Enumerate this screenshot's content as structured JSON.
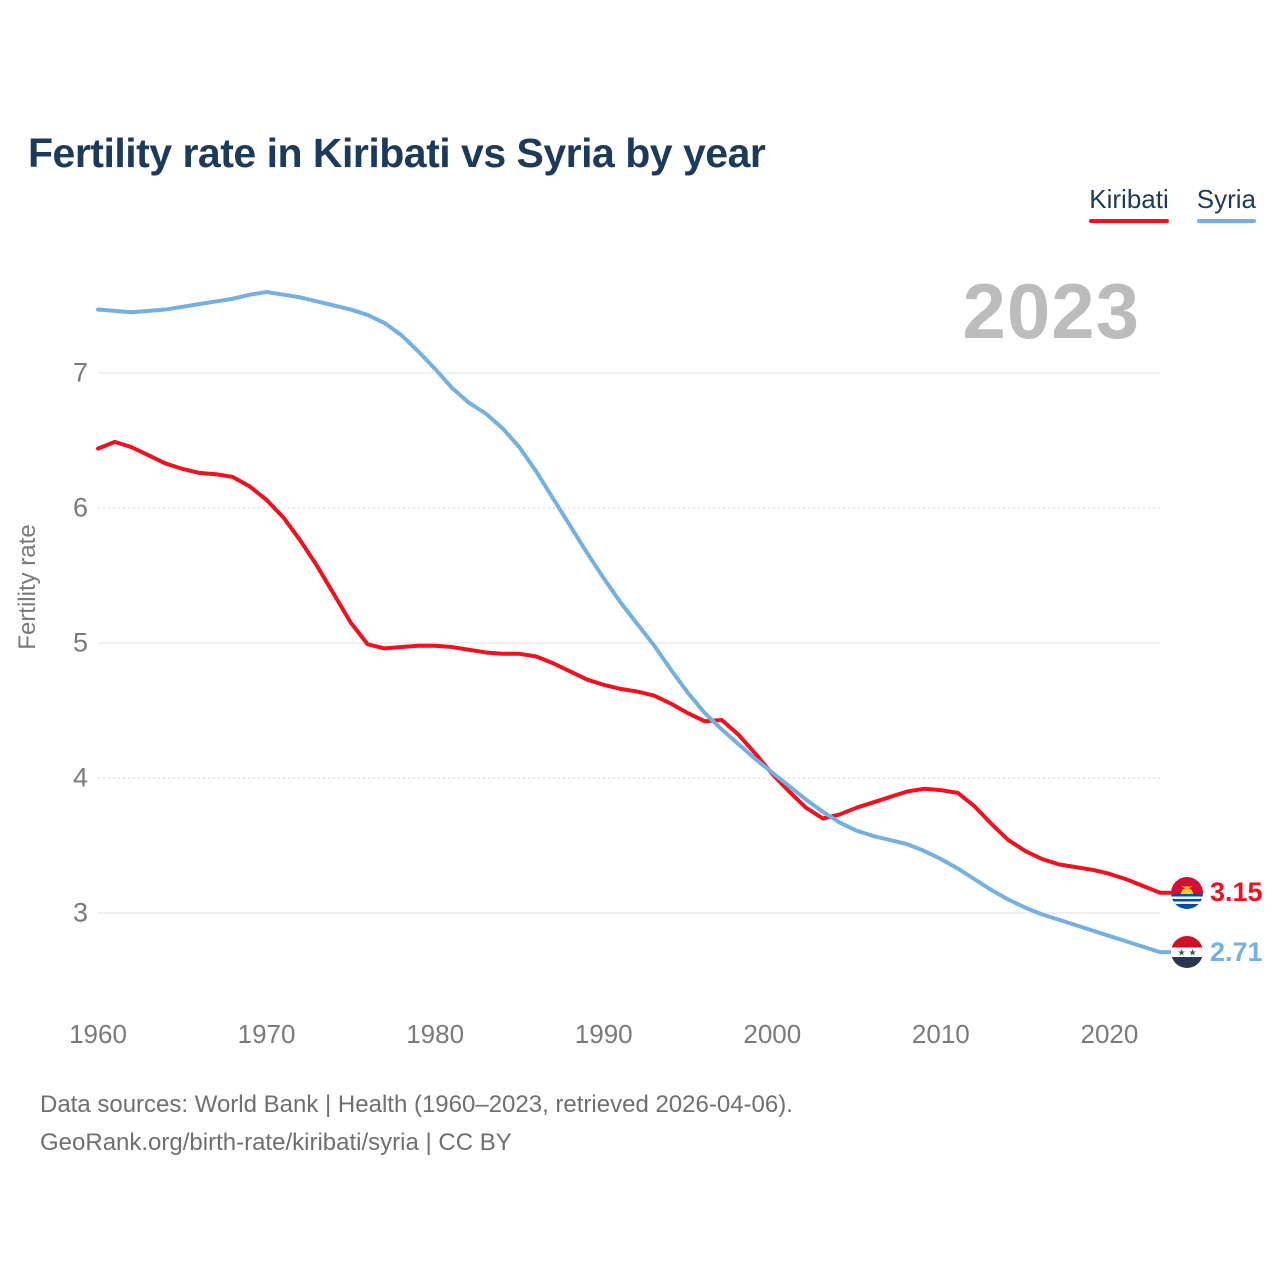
{
  "title": "Fertility rate in Kiribati vs Syria by year",
  "watermark": "2023",
  "legend": [
    {
      "label": "Kiribati",
      "color": "#f2101f"
    },
    {
      "label": "Syria",
      "color": "#74b0e2"
    }
  ],
  "y_axis": {
    "label": "Fertility rate",
    "ticks": [
      7,
      6,
      5,
      4,
      3
    ]
  },
  "x_axis": {
    "ticks": [
      1960,
      1970,
      1980,
      1990,
      2000,
      2010,
      2020
    ]
  },
  "end_labels": [
    {
      "series": "Kiribati",
      "value": "3.15",
      "color": "#f2101f",
      "flag_icon": "kiribati-flag-icon"
    },
    {
      "series": "Syria",
      "value": "2.71",
      "color": "#74b0e2",
      "flag_icon": "syria-flag-icon"
    }
  ],
  "footer": {
    "line1": "Data sources: World Bank | Health (1960–2023, retrieved 2026-04-06).",
    "line2": "GeoRank.org/birth-rate/kiribati/syria | CC BY"
  },
  "chart_data": {
    "type": "line",
    "title": "Fertility rate in Kiribati vs Syria by year",
    "xlabel": "",
    "ylabel": "Fertility rate",
    "xlim": [
      1960,
      2023
    ],
    "ylim": [
      2.5,
      7.8
    ],
    "grid": "horizontal",
    "legend_position": "top-right",
    "x": [
      1960,
      1961,
      1962,
      1963,
      1964,
      1965,
      1966,
      1967,
      1968,
      1969,
      1970,
      1971,
      1972,
      1973,
      1974,
      1975,
      1976,
      1977,
      1978,
      1979,
      1980,
      1981,
      1982,
      1983,
      1984,
      1985,
      1986,
      1987,
      1988,
      1989,
      1990,
      1991,
      1992,
      1993,
      1994,
      1995,
      1996,
      1997,
      1998,
      1999,
      2000,
      2001,
      2002,
      2003,
      2004,
      2005,
      2006,
      2007,
      2008,
      2009,
      2010,
      2011,
      2012,
      2013,
      2014,
      2015,
      2016,
      2017,
      2018,
      2019,
      2020,
      2021,
      2022,
      2023
    ],
    "series": [
      {
        "name": "Kiribati",
        "color": "#f2101f",
        "final_value": 3.15,
        "values": [
          6.44,
          6.49,
          6.45,
          6.39,
          6.33,
          6.29,
          6.26,
          6.25,
          6.23,
          6.16,
          6.06,
          5.93,
          5.76,
          5.57,
          5.36,
          5.15,
          4.99,
          4.96,
          4.97,
          4.98,
          4.98,
          4.97,
          4.95,
          4.93,
          4.92,
          4.92,
          4.9,
          4.85,
          4.79,
          4.73,
          4.69,
          4.66,
          4.64,
          4.61,
          4.55,
          4.48,
          4.42,
          4.43,
          4.32,
          4.18,
          4.03,
          3.9,
          3.78,
          3.7,
          3.73,
          3.78,
          3.82,
          3.86,
          3.9,
          3.92,
          3.91,
          3.89,
          3.79,
          3.66,
          3.54,
          3.46,
          3.4,
          3.36,
          3.34,
          3.32,
          3.29,
          3.25,
          3.2,
          3.15
        ]
      },
      {
        "name": "Syria",
        "color": "#74b0e2",
        "final_value": 2.71,
        "values": [
          7.47,
          7.46,
          7.45,
          7.46,
          7.47,
          7.49,
          7.51,
          7.53,
          7.55,
          7.58,
          7.6,
          7.58,
          7.56,
          7.53,
          7.5,
          7.47,
          7.43,
          7.37,
          7.28,
          7.16,
          7.03,
          6.89,
          6.78,
          6.7,
          6.59,
          6.45,
          6.27,
          6.07,
          5.87,
          5.67,
          5.48,
          5.3,
          5.14,
          4.98,
          4.8,
          4.63,
          4.48,
          4.36,
          4.25,
          4.14,
          4.04,
          3.94,
          3.84,
          3.75,
          3.67,
          3.61,
          3.57,
          3.54,
          3.51,
          3.46,
          3.4,
          3.33,
          3.25,
          3.17,
          3.1,
          3.04,
          2.99,
          2.95,
          2.91,
          2.87,
          2.83,
          2.79,
          2.75,
          2.71
        ]
      }
    ]
  }
}
